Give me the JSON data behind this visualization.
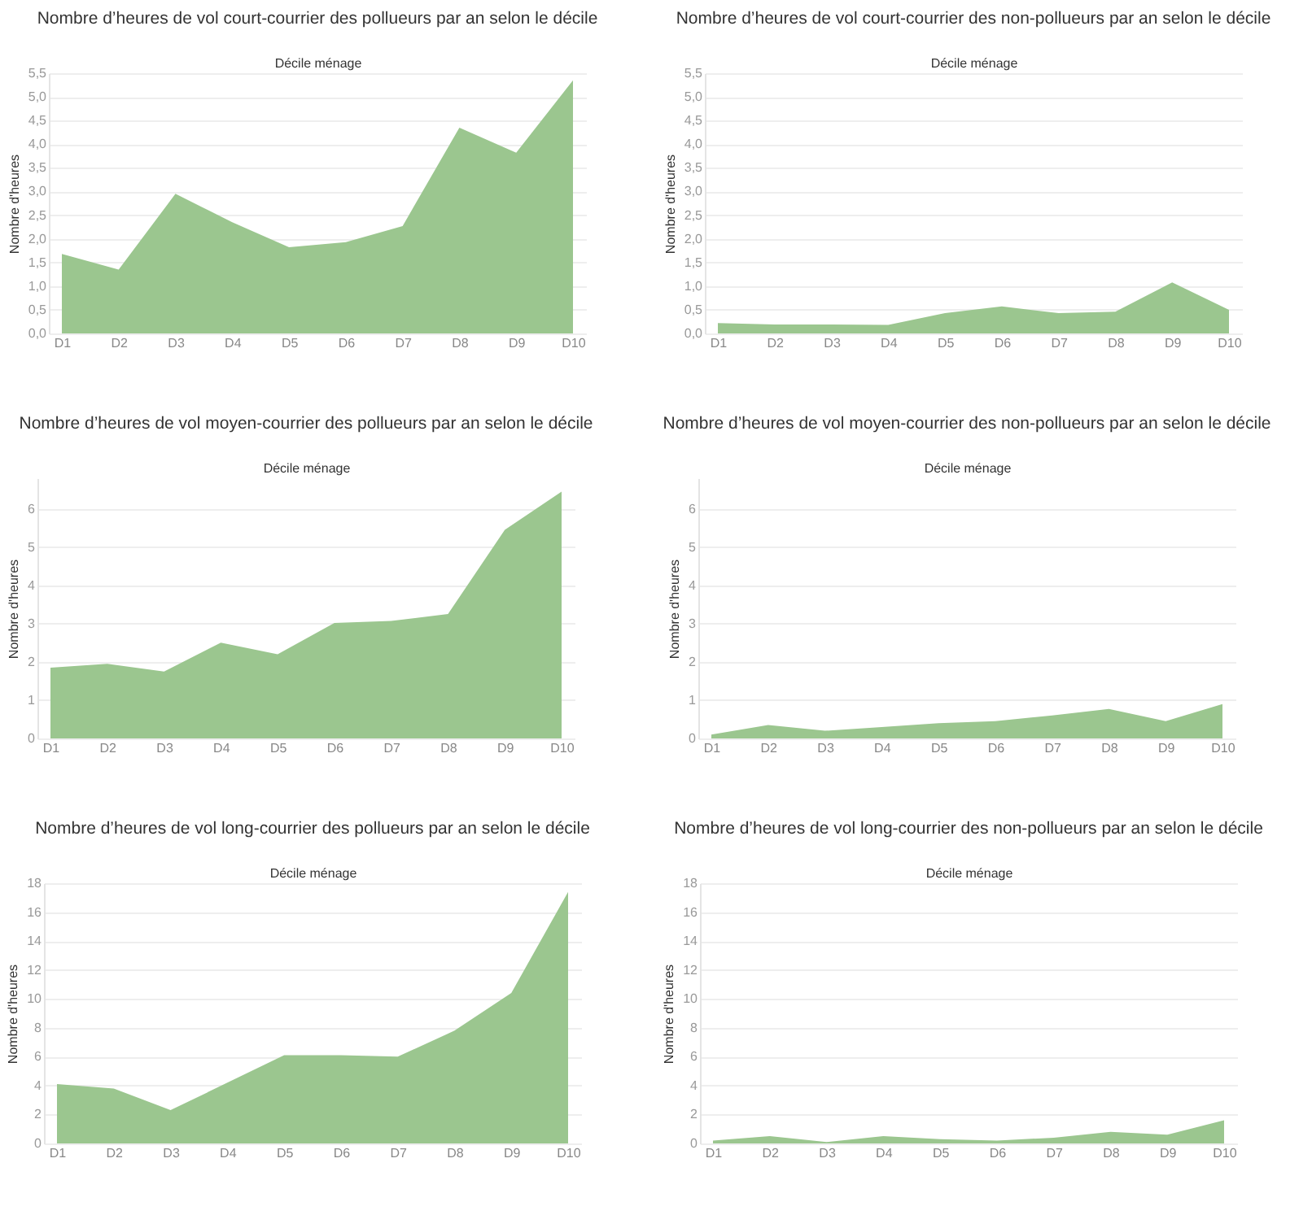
{
  "chart_data": [
    {
      "type": "area",
      "title": "Nombre d’heures de vol court-courrier des pollueurs par an selon le décile",
      "xlabel": "Décile ménage",
      "ylabel": "Nombre d'heures",
      "categories": [
        "D1",
        "D2",
        "D3",
        "D4",
        "D5",
        "D6",
        "D7",
        "D8",
        "D9",
        "D10"
      ],
      "series": [
        {
          "color": "#9bc68f",
          "values": [
            1.68,
            1.35,
            2.95,
            2.35,
            1.82,
            1.93,
            2.27,
            4.35,
            3.82,
            5.35
          ]
        }
      ],
      "ylim": [
        0,
        5.5
      ],
      "yticks": [
        {
          "value": 0,
          "label": "0,0"
        },
        {
          "value": 0.5,
          "label": "0,5"
        },
        {
          "value": 1,
          "label": "1,0"
        },
        {
          "value": 1.5,
          "label": "1,5"
        },
        {
          "value": 2,
          "label": "2,0"
        },
        {
          "value": 2.5,
          "label": "2,5"
        },
        {
          "value": 3,
          "label": "3,0"
        },
        {
          "value": 3.5,
          "label": "3,5"
        },
        {
          "value": 4,
          "label": "4,0"
        },
        {
          "value": 4.5,
          "label": "4,5"
        },
        {
          "value": 5,
          "label": "5,0"
        },
        {
          "value": 5.5,
          "label": "5,5"
        }
      ],
      "grid": "y"
    },
    {
      "type": "area",
      "title": "Nombre d’heures de vol court-courrier des non-pollueurs par an selon le décile",
      "xlabel": "Décile ménage",
      "ylabel": "Nombre d'heures",
      "categories": [
        "D1",
        "D2",
        "D3",
        "D4",
        "D5",
        "D6",
        "D7",
        "D8",
        "D9",
        "D10"
      ],
      "series": [
        {
          "color": "#9bc68f",
          "values": [
            0.22,
            0.19,
            0.19,
            0.18,
            0.43,
            0.57,
            0.43,
            0.46,
            1.08,
            0.5
          ]
        }
      ],
      "ylim": [
        0,
        5.5
      ],
      "yticks": [
        {
          "value": 0,
          "label": "0,0"
        },
        {
          "value": 0.5,
          "label": "0,5"
        },
        {
          "value": 1,
          "label": "1,0"
        },
        {
          "value": 1.5,
          "label": "1,5"
        },
        {
          "value": 2,
          "label": "2,0"
        },
        {
          "value": 2.5,
          "label": "2,5"
        },
        {
          "value": 3,
          "label": "3,0"
        },
        {
          "value": 3.5,
          "label": "3,5"
        },
        {
          "value": 4,
          "label": "4,0"
        },
        {
          "value": 4.5,
          "label": "4,5"
        },
        {
          "value": 5,
          "label": "5,0"
        },
        {
          "value": 5.5,
          "label": "5,5"
        }
      ],
      "grid": "y"
    },
    {
      "type": "area",
      "title": "Nombre d’heures de vol moyen-courrier des pollueurs par an selon le décile",
      "xlabel": "Décile ménage",
      "ylabel": "Nombre d'heures",
      "categories": [
        "D1",
        "D2",
        "D3",
        "D4",
        "D5",
        "D6",
        "D7",
        "D8",
        "D9",
        "D10"
      ],
      "series": [
        {
          "color": "#9bc68f",
          "values": [
            1.85,
            1.95,
            1.75,
            2.5,
            2.2,
            3.02,
            3.07,
            3.25,
            5.45,
            6.45
          ]
        }
      ],
      "ylim": [
        0,
        6.8
      ],
      "yticks": [
        0,
        1,
        2,
        3,
        4,
        5,
        6
      ],
      "grid": "y"
    },
    {
      "type": "area",
      "title": "Nombre d’heures de vol moyen-courrier des non-pollueurs par an selon le décile",
      "xlabel": "Décile ménage",
      "ylabel": "Nombre d'heures",
      "categories": [
        "D1",
        "D2",
        "D3",
        "D4",
        "D5",
        "D6",
        "D7",
        "D8",
        "D9",
        "D10"
      ],
      "series": [
        {
          "color": "#9bc68f",
          "values": [
            0.1,
            0.35,
            0.2,
            0.3,
            0.4,
            0.45,
            0.6,
            0.77,
            0.45,
            0.9
          ]
        }
      ],
      "ylim": [
        0,
        6.8
      ],
      "yticks": [
        0,
        1,
        2,
        3,
        4,
        5,
        6
      ],
      "grid": "y"
    },
    {
      "type": "area",
      "title": "Nombre d’heures de vol long-courrier des pollueurs par an selon le décile",
      "xlabel": "Décile ménage",
      "ylabel": "Nombre d'heures",
      "categories": [
        "D1",
        "D2",
        "D3",
        "D4",
        "D5",
        "D6",
        "D7",
        "D8",
        "D9",
        "D10"
      ],
      "series": [
        {
          "color": "#9bc68f",
          "values": [
            4.1,
            3.8,
            2.3,
            4.2,
            6.1,
            6.1,
            6.0,
            7.8,
            10.4,
            17.4
          ]
        }
      ],
      "ylim": [
        0,
        18
      ],
      "yticks": [
        0,
        2,
        4,
        6,
        8,
        10,
        12,
        14,
        16,
        18
      ],
      "grid": "y"
    },
    {
      "type": "area",
      "title": "Nombre d’heures de vol long-courrier des non-pollueurs par an selon le décile",
      "xlabel": "Décile ménage",
      "ylabel": "Nombre d'heures",
      "categories": [
        "D1",
        "D2",
        "D3",
        "D4",
        "D5",
        "D6",
        "D7",
        "D8",
        "D9",
        "D10"
      ],
      "series": [
        {
          "color": "#9bc68f",
          "values": [
            0.2,
            0.5,
            0.1,
            0.5,
            0.3,
            0.2,
            0.4,
            0.8,
            0.6,
            1.6
          ]
        }
      ],
      "ylim": [
        0,
        18
      ],
      "yticks": [
        0,
        2,
        4,
        6,
        8,
        10,
        12,
        14,
        16,
        18
      ],
      "grid": "y"
    }
  ]
}
